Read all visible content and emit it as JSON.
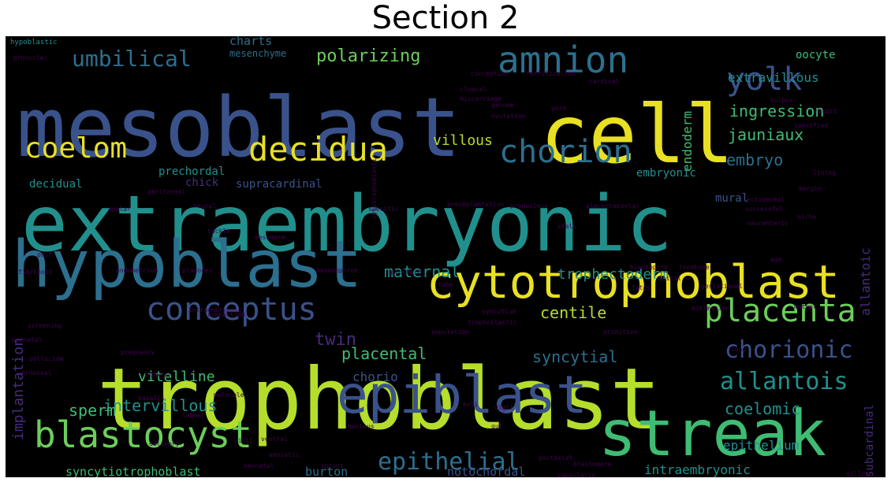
{
  "title": "Section 2",
  "palette": {
    "yellow": "#e8e022",
    "lime": "#b5dd2b",
    "green": "#6cce5a",
    "mint": "#3fbc73",
    "teal": "#21908d",
    "steel": "#2c6f8e",
    "blue": "#3a528b",
    "indigo": "#472c7a",
    "purple": "#440154"
  },
  "words": [
    {
      "text": "extraembryonic",
      "color": "teal"
    },
    {
      "text": "trophoblast",
      "color": "lime"
    },
    {
      "text": "mesoblast",
      "color": "blue"
    },
    {
      "text": "cell",
      "color": "yellow"
    },
    {
      "text": "hypoblast",
      "color": "steel"
    },
    {
      "text": "cytotrophoblast",
      "color": "yellow"
    },
    {
      "text": "streak",
      "color": "mint"
    },
    {
      "text": "epiblast",
      "color": "blue"
    },
    {
      "text": "blastocyst",
      "color": "green"
    },
    {
      "text": "amnion",
      "color": "steel"
    },
    {
      "text": "decidua",
      "color": "yellow"
    },
    {
      "text": "chorion",
      "color": "steel"
    },
    {
      "text": "placenta",
      "color": "green"
    },
    {
      "text": "conceptus",
      "color": "blue"
    },
    {
      "text": "coelom",
      "color": "yellow"
    },
    {
      "text": "yolk",
      "color": "blue"
    },
    {
      "text": "chorionic",
      "color": "blue"
    },
    {
      "text": "allantois",
      "color": "teal"
    },
    {
      "text": "umbilical",
      "color": "steel"
    },
    {
      "text": "epithelial",
      "color": "steel"
    },
    {
      "text": "intervillous",
      "color": "teal"
    },
    {
      "text": "placental",
      "color": "mint"
    },
    {
      "text": "syncytial",
      "color": "steel"
    },
    {
      "text": "maternal",
      "color": "teal"
    },
    {
      "text": "twin",
      "color": "indigo"
    },
    {
      "text": "centile",
      "color": "lime"
    },
    {
      "text": "vitelline",
      "color": "mint"
    },
    {
      "text": "trophectoderm",
      "color": "teal"
    },
    {
      "text": "coelomic",
      "color": "teal"
    },
    {
      "text": "polarizing",
      "color": "green"
    },
    {
      "text": "ingression",
      "color": "mint"
    },
    {
      "text": "jauniaux",
      "color": "mint"
    },
    {
      "text": "embryo",
      "color": "steel"
    },
    {
      "text": "villous",
      "color": "lime"
    },
    {
      "text": "extravillous",
      "color": "teal"
    },
    {
      "text": "implantation",
      "color": "indigo"
    },
    {
      "text": "sperm",
      "color": "mint"
    },
    {
      "text": "syncytiotrophoblast",
      "color": "mint"
    },
    {
      "text": "burton",
      "color": "steel"
    },
    {
      "text": "epithelium",
      "color": "teal"
    },
    {
      "text": "intraembryonic",
      "color": "teal"
    },
    {
      "text": "allantoic",
      "color": "indigo"
    },
    {
      "text": "notochordal",
      "color": "blue"
    },
    {
      "text": "chorio",
      "color": "blue"
    },
    {
      "text": "endoderm",
      "color": "mint"
    },
    {
      "text": "charts",
      "color": "steel"
    },
    {
      "text": "mesenchyme",
      "color": "steel"
    },
    {
      "text": "oocyte",
      "color": "mint"
    },
    {
      "text": "prechordal",
      "color": "teal"
    },
    {
      "text": "decidual",
      "color": "teal"
    },
    {
      "text": "chick",
      "color": "indigo"
    },
    {
      "text": "supracardinal",
      "color": "blue"
    },
    {
      "text": "embryonic",
      "color": "teal"
    },
    {
      "text": "mural",
      "color": "blue"
    },
    {
      "text": "subcardinal",
      "color": "indigo"
    },
    {
      "text": "hypoblastic",
      "color": "teal"
    },
    {
      "text": "pronuclei",
      "color": "purple"
    },
    {
      "text": "conception",
      "color": "purple"
    },
    {
      "text": "fertilization",
      "color": "purple"
    },
    {
      "text": "cardinal",
      "color": "purple"
    },
    {
      "text": "cloacal",
      "color": "purple"
    },
    {
      "text": "miscarriage",
      "color": "purple"
    },
    {
      "text": "ovulation",
      "color": "purple"
    },
    {
      "text": "genome",
      "color": "purple"
    },
    {
      "text": "germ",
      "color": "purple"
    },
    {
      "text": "specific",
      "color": "purple"
    },
    {
      "text": "pronucleus",
      "color": "purple"
    },
    {
      "text": "placentae",
      "color": "purple"
    },
    {
      "text": "ectodermal",
      "color": "purple"
    },
    {
      "text": "successful",
      "color": "purple"
    },
    {
      "text": "neurenteric",
      "color": "purple"
    },
    {
      "text": "preimplantation",
      "color": "purple"
    },
    {
      "text": "peritoneal",
      "color": "purple"
    },
    {
      "text": "apolar",
      "color": "purple"
    },
    {
      "text": "neural",
      "color": "purple"
    },
    {
      "text": "tackle",
      "color": "purple"
    },
    {
      "text": "mesoderm",
      "color": "purple"
    },
    {
      "text": "cytotrophoblastic",
      "color": "purple"
    },
    {
      "text": "notochord",
      "color": "purple"
    },
    {
      "text": "endometrium",
      "color": "purple"
    },
    {
      "text": "placodes",
      "color": "purple"
    },
    {
      "text": "mesonephros",
      "color": "purple"
    },
    {
      "text": "intraembryonic",
      "color": "purple"
    },
    {
      "text": "compaction",
      "color": "purple"
    },
    {
      "text": "pregnancy",
      "color": "purple"
    },
    {
      "text": "binary",
      "color": "purple"
    },
    {
      "text": "molecule",
      "color": "purple"
    },
    {
      "text": "pellucida",
      "color": "purple"
    },
    {
      "text": "basalis",
      "color": "purple"
    },
    {
      "text": "syncytium",
      "color": "purple"
    },
    {
      "text": "trophoblastic",
      "color": "purple"
    },
    {
      "text": "population",
      "color": "purple"
    },
    {
      "text": "blastopore",
      "color": "purple"
    },
    {
      "text": "gestational",
      "color": "purple"
    },
    {
      "text": "estimation",
      "color": "purple"
    },
    {
      "text": "primitive",
      "color": "purple"
    },
    {
      "text": "delivery",
      "color": "purple"
    },
    {
      "text": "labour",
      "color": "purple"
    },
    {
      "text": "villi",
      "color": "purple"
    },
    {
      "text": "blastomere",
      "color": "purple"
    },
    {
      "text": "postaxial",
      "color": "purple"
    },
    {
      "text": "capsularis",
      "color": "purple"
    },
    {
      "text": "villus",
      "color": "purple"
    },
    {
      "text": "age",
      "color": "purple"
    },
    {
      "text": "apical",
      "color": "purple"
    },
    {
      "text": "fates",
      "color": "purple"
    },
    {
      "text": "trombone",
      "color": "purple"
    },
    {
      "text": "fibrinoid",
      "color": "purple"
    },
    {
      "text": "post",
      "color": "purple"
    },
    {
      "text": "screening",
      "color": "purple"
    },
    {
      "text": "prenatal",
      "color": "purple"
    },
    {
      "text": "ventral",
      "color": "purple"
    },
    {
      "text": "neonatal",
      "color": "purple"
    },
    {
      "text": "sprout",
      "color": "purple"
    },
    {
      "text": "amniotic",
      "color": "purple"
    },
    {
      "text": "nucleus",
      "color": "purple"
    },
    {
      "text": "boli",
      "color": "purple"
    },
    {
      "text": "digit",
      "color": "purple"
    },
    {
      "text": "gut",
      "color": "purple"
    },
    {
      "text": "specified",
      "color": "purple"
    },
    {
      "text": "bulbus",
      "color": "purple"
    },
    {
      "text": "margin",
      "color": "purple"
    },
    {
      "text": "polar",
      "color": "purple"
    },
    {
      "text": "lining",
      "color": "purple"
    },
    {
      "text": "niche",
      "color": "purple"
    },
    {
      "text": "rabbit",
      "color": "purple"
    },
    {
      "text": "mother",
      "color": "purple"
    },
    {
      "text": "stalk",
      "color": "purple"
    },
    {
      "text": "tube",
      "color": "purple"
    },
    {
      "text": "lung",
      "color": "purple"
    },
    {
      "text": "proposal",
      "color": "purple"
    }
  ]
}
